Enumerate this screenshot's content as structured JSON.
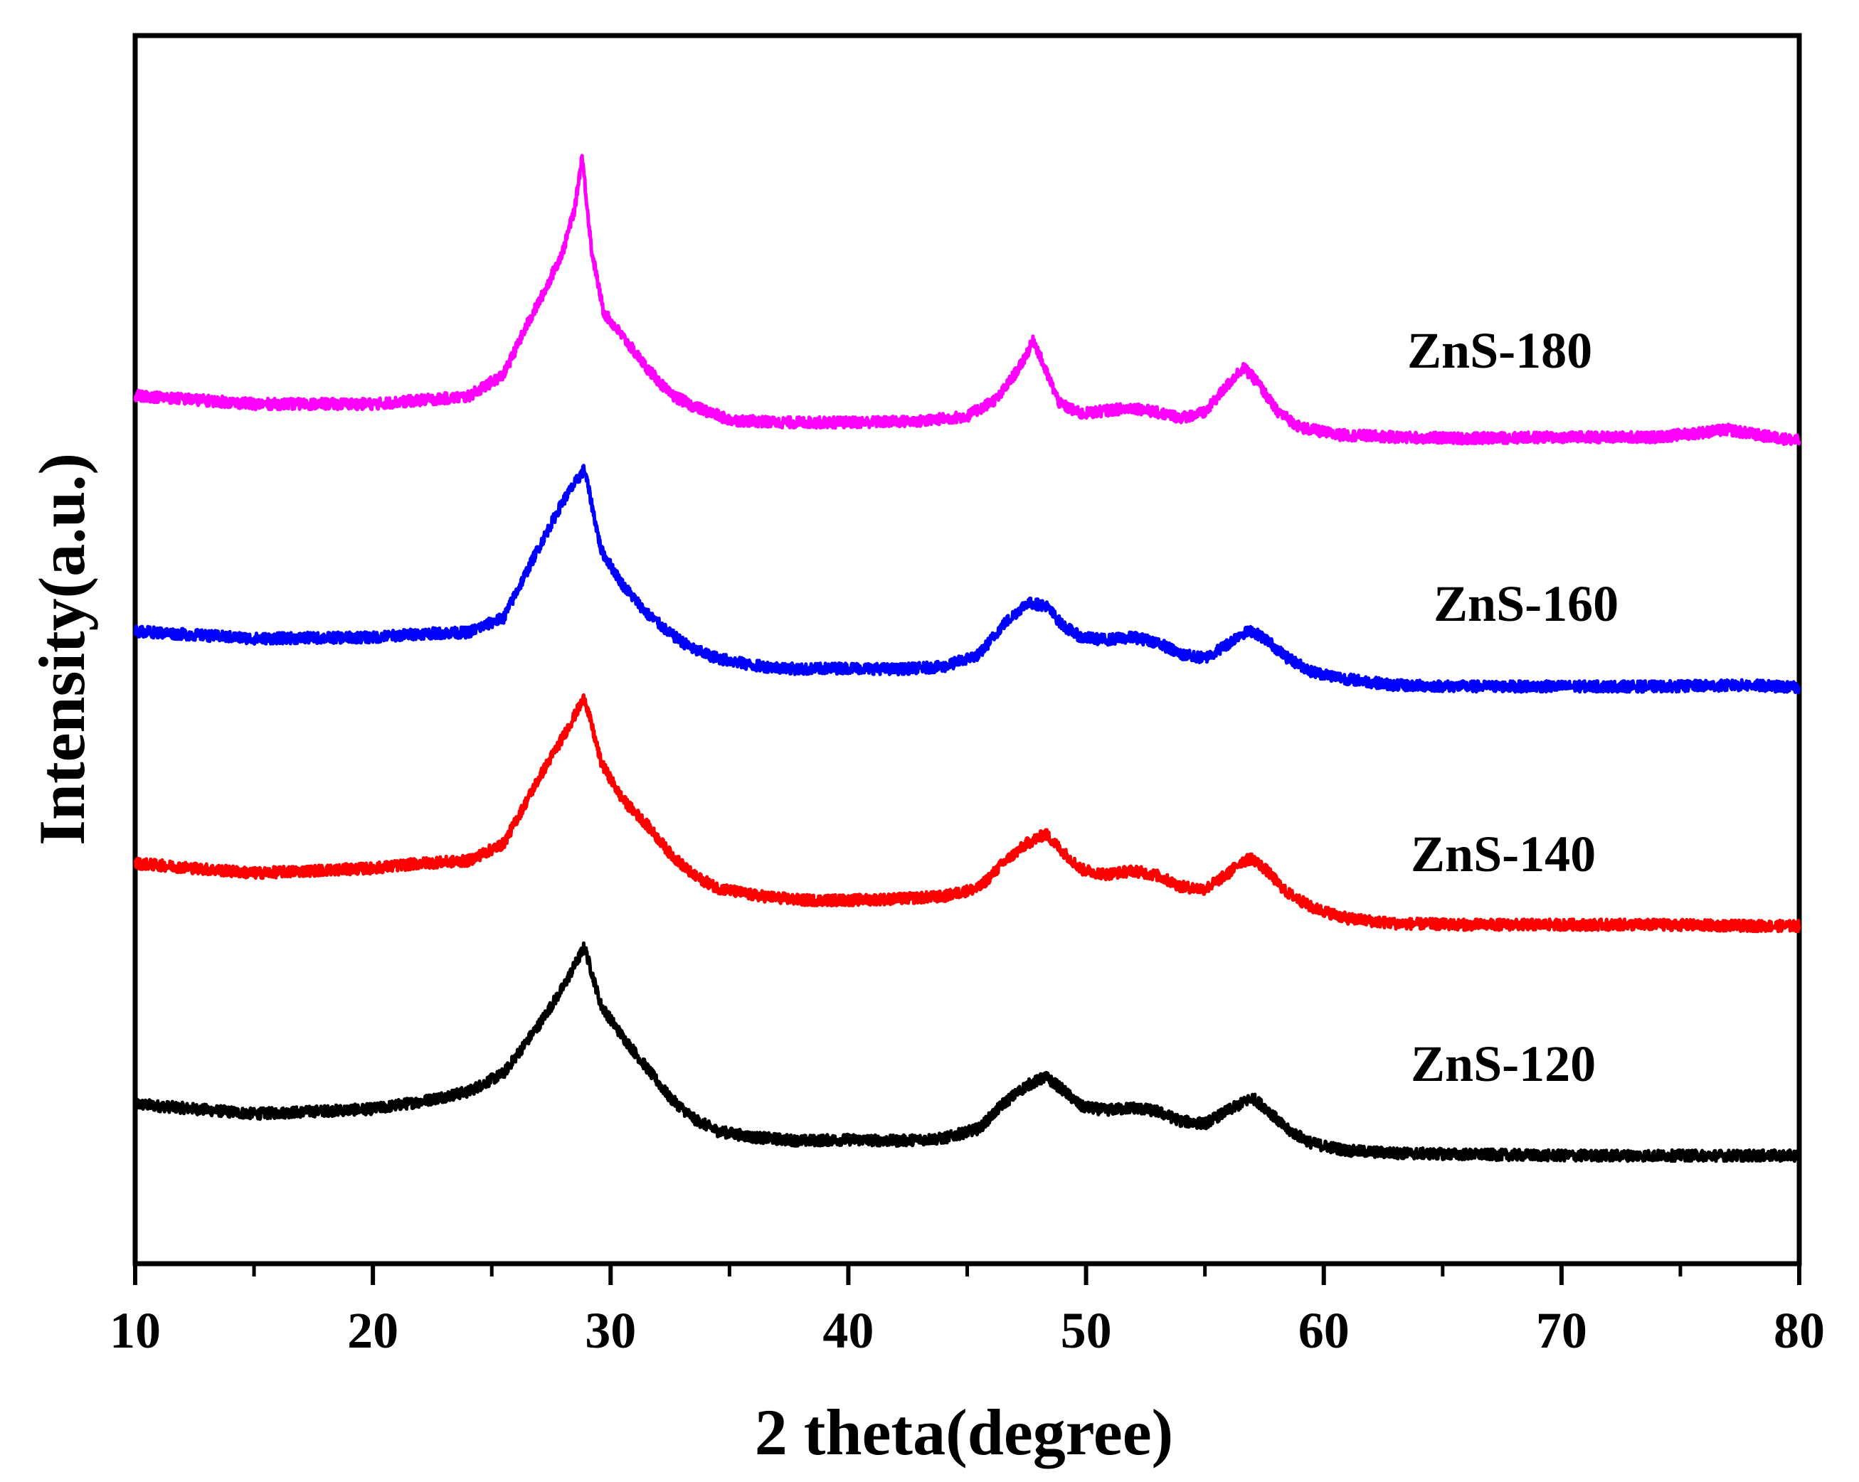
{
  "chart_data": {
    "type": "line",
    "title": "",
    "xlabel": "2 theta(degree)",
    "ylabel": "Intensity(a.u.)",
    "xlim": [
      10,
      80
    ],
    "ylim": [
      0,
      100
    ],
    "xticks": [
      10,
      20,
      30,
      40,
      50,
      60,
      70,
      80
    ],
    "grid": false,
    "legend": "inline labels to the right of each curve",
    "series": [
      {
        "name": "ZnS-120",
        "color": "#000000",
        "x": [
          10,
          15,
          20,
          22,
          24,
          25.5,
          27,
          28,
          28.9,
          29.6,
          30.5,
          31.5,
          32.5,
          33.5,
          34.5,
          36,
          38,
          40,
          42,
          44,
          45.5,
          46.5,
          47.5,
          48.3,
          49,
          49.8,
          50.8,
          52,
          53,
          54,
          55,
          56,
          56.5,
          57,
          57.6,
          58.4,
          59.5,
          61,
          63,
          66,
          70,
          74,
          78,
          80
        ],
        "y": [
          13.0,
          12.2,
          12.6,
          13.2,
          14.0,
          15.5,
          19.5,
          22.5,
          25.8,
          21.0,
          18.5,
          16.0,
          13.5,
          11.8,
          10.8,
          10.3,
          10.0,
          10.1,
          10.0,
          10.2,
          11.0,
          13.0,
          14.5,
          15.2,
          14.2,
          12.8,
          12.5,
          12.7,
          12.4,
          11.6,
          11.4,
          12.5,
          13.0,
          13.5,
          12.6,
          11.0,
          9.8,
          9.2,
          9.0,
          8.9,
          8.8,
          8.8,
          8.8,
          8.8
        ]
      },
      {
        "name": "ZnS-140",
        "color": "#ff0000",
        "x": [
          10,
          15,
          20,
          22,
          24,
          25.5,
          27,
          28,
          28.9,
          29.6,
          30.5,
          31.5,
          32.5,
          33.5,
          34.5,
          36,
          38,
          40,
          42,
          44,
          45.5,
          46.5,
          47.5,
          48.3,
          49,
          49.8,
          50.8,
          52,
          53,
          54,
          55,
          56,
          56.5,
          57,
          57.6,
          58.4,
          59.5,
          61,
          63,
          66,
          70,
          74,
          78,
          80
        ],
        "y": [
          32.6,
          31.8,
          32.2,
          32.6,
          32.8,
          34.2,
          39.6,
          42.9,
          46.1,
          40.8,
          37.8,
          35.8,
          33.4,
          31.6,
          30.6,
          30.0,
          29.6,
          29.6,
          29.7,
          29.9,
          30.6,
          32.6,
          34.2,
          35.0,
          33.6,
          32.1,
          31.7,
          32.0,
          31.6,
          30.7,
          30.5,
          31.8,
          32.7,
          33.0,
          32.0,
          30.3,
          29.0,
          28.1,
          27.7,
          27.6,
          27.6,
          27.6,
          27.5,
          27.5
        ]
      },
      {
        "name": "ZnS-160",
        "color": "#0000ff",
        "x": [
          10,
          15,
          20,
          22,
          24,
          25.5,
          27,
          28,
          28.9,
          29.6,
          30.5,
          31.5,
          32.5,
          33.5,
          34.5,
          36,
          38,
          40,
          42,
          44,
          45.5,
          46.5,
          47.5,
          48.3,
          49,
          49.8,
          50.8,
          52,
          53,
          54,
          55,
          56,
          56.5,
          57,
          57.6,
          58.4,
          59.5,
          61,
          63,
          66,
          70,
          74,
          78,
          80
        ],
        "y": [
          51.5,
          50.9,
          51.0,
          51.3,
          51.4,
          52.6,
          58.4,
          62.1,
          64.7,
          58.1,
          55.3,
          53.0,
          51.3,
          50.0,
          49.3,
          48.7,
          48.4,
          48.5,
          48.4,
          48.6,
          49.6,
          52.0,
          53.8,
          53.6,
          52.0,
          51.0,
          50.8,
          51.0,
          50.6,
          49.6,
          49.3,
          50.5,
          51.3,
          51.5,
          50.8,
          49.4,
          48.2,
          47.6,
          47.1,
          47.0,
          47.0,
          47.0,
          47.1,
          46.9
        ]
      },
      {
        "name": "ZnS-180",
        "color": "#ff00ff",
        "x": [
          10,
          15,
          20,
          22,
          24,
          25.5,
          26.5,
          27.3,
          28.0,
          28.5,
          28.8,
          29.2,
          29.7,
          30.5,
          31.5,
          32.5,
          33.5,
          35,
          37,
          40,
          43,
          45,
          46.3,
          47.2,
          47.8,
          48.3,
          48.9,
          49.8,
          51,
          52,
          53,
          54,
          55,
          55.8,
          56.6,
          57.2,
          58,
          59,
          60.5,
          63,
          66,
          70,
          74,
          77,
          78.5,
          80
        ],
        "y": [
          70.7,
          70.0,
          70.0,
          70.3,
          70.6,
          72.4,
          76.5,
          79.5,
          82.5,
          86.0,
          90.2,
          82.5,
          77.5,
          75.5,
          73.0,
          70.8,
          69.8,
          68.7,
          68.5,
          68.5,
          68.6,
          69.0,
          70.5,
          73.0,
          75.2,
          72.7,
          70.0,
          69.2,
          69.5,
          69.7,
          69.3,
          68.9,
          69.3,
          71.2,
          73.0,
          71.8,
          69.5,
          68.1,
          67.5,
          67.3,
          67.2,
          67.3,
          67.3,
          67.9,
          67.4,
          67.0
        ]
      }
    ]
  }
}
